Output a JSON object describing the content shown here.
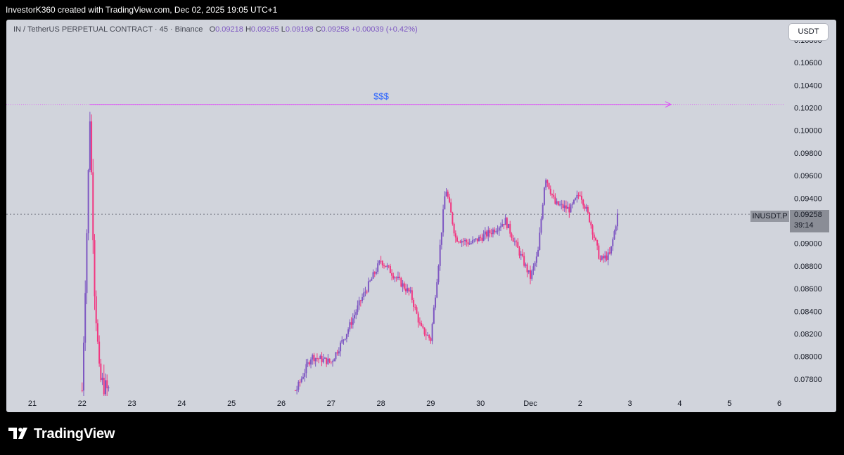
{
  "header": {
    "text": "InvestorK360 created with TradingView.com, Dec 02, 2025 19:05 UTC+1"
  },
  "legend": {
    "symbol": "IN / TetherUS PERPETUAL CONTRACT · 45 · Binance",
    "o_label": "O",
    "o_value": "0.09218",
    "h_label": "H",
    "h_value": "0.09265",
    "l_label": "L",
    "l_value": "0.09198",
    "c_label": "C",
    "c_value": "0.09258",
    "change": "+0.00039 (+0.42%)"
  },
  "unit_button": "USDT",
  "price_tag": {
    "symbol": "INUSDT.P",
    "price": "0.09258",
    "countdown": "39:14"
  },
  "annotation": {
    "label": "$$$",
    "price": 0.1023
  },
  "footer": {
    "brand": "TradingView"
  },
  "colors": {
    "up": "#7e57c2",
    "down": "#f23680",
    "annotation": "#e040fb",
    "label": "#2962ff"
  },
  "chart_data": {
    "type": "candlestick",
    "x_ticks": [
      "21",
      "22",
      "23",
      "24",
      "25",
      "26",
      "27",
      "28",
      "29",
      "30",
      "Dec",
      "2",
      "3",
      "4",
      "5",
      "6"
    ],
    "y_ticks": [
      "0.10800",
      "0.10600",
      "0.10400",
      "0.10200",
      "0.10000",
      "0.09800",
      "0.09600",
      "0.09400",
      "0.09200",
      "0.09000",
      "0.08800",
      "0.08600",
      "0.08400",
      "0.08200",
      "0.08000",
      "0.07800"
    ],
    "ylim": [
      0.0765,
      0.1098
    ],
    "last_price": 0.09258,
    "key_points": [
      [
        22.0,
        0.077
      ],
      [
        22.12,
        0.095
      ],
      [
        22.15,
        0.1023
      ],
      [
        22.25,
        0.086
      ],
      [
        22.35,
        0.078
      ],
      [
        22.5,
        0.077
      ],
      [
        26.3,
        0.077
      ],
      [
        26.6,
        0.08
      ],
      [
        27.0,
        0.0795
      ],
      [
        27.3,
        0.082
      ],
      [
        27.6,
        0.085
      ],
      [
        28.0,
        0.0885
      ],
      [
        28.3,
        0.087
      ],
      [
        28.6,
        0.0855
      ],
      [
        28.8,
        0.0825
      ],
      [
        29.0,
        0.0815
      ],
      [
        29.15,
        0.088
      ],
      [
        29.3,
        0.095
      ],
      [
        29.5,
        0.0905
      ],
      [
        29.8,
        0.09
      ],
      [
        30.2,
        0.091
      ],
      [
        30.5,
        0.092
      ],
      [
        30.8,
        0.089
      ],
      [
        31.0,
        0.087
      ],
      [
        31.15,
        0.089
      ],
      [
        31.3,
        0.096
      ],
      [
        31.5,
        0.0935
      ],
      [
        31.8,
        0.093
      ],
      [
        32.0,
        0.0945
      ],
      [
        32.2,
        0.092
      ],
      [
        32.4,
        0.0885
      ],
      [
        32.6,
        0.089
      ],
      [
        32.75,
        0.0925
      ]
    ]
  }
}
